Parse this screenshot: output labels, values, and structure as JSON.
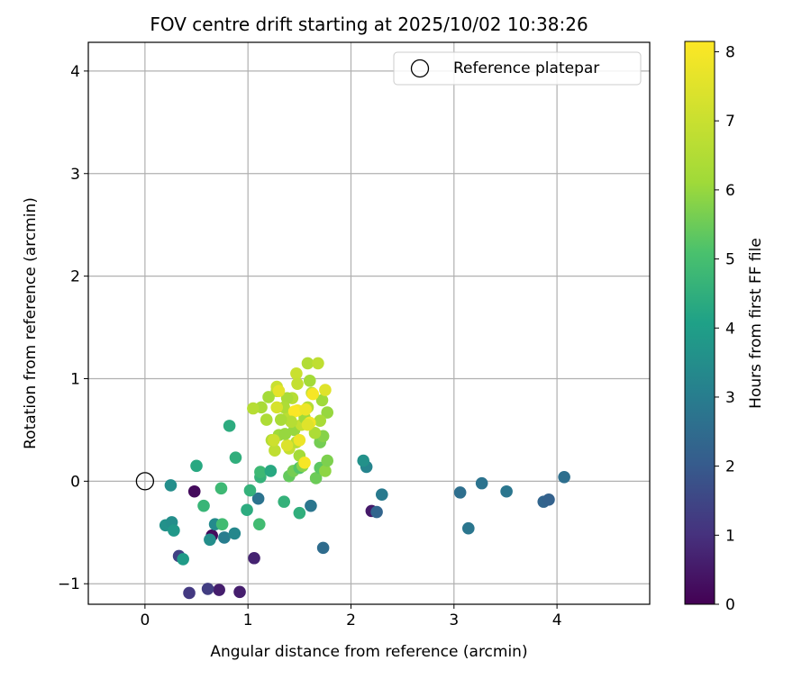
{
  "chart_data": {
    "type": "scatter",
    "title": "FOV centre drift starting at 2025/10/02 10:38:26",
    "xlabel": "Angular distance from reference (arcmin)",
    "ylabel": "Rotation from reference (arcmin)",
    "xlim": [
      -0.55,
      4.9
    ],
    "ylim": [
      -1.2,
      4.28
    ],
    "xticks": [
      0,
      1,
      2,
      3,
      4
    ],
    "yticks": [
      -1,
      0,
      1,
      2,
      3,
      4
    ],
    "grid": true,
    "legend": {
      "label": "Reference platepar",
      "position": "top-right",
      "marker": "open-circle"
    },
    "reference_point": {
      "x": 0,
      "y": 0
    },
    "colorbar": {
      "label": "Hours from first FF file",
      "min": 0,
      "max": 8.15,
      "ticks": [
        0,
        1,
        2,
        3,
        4,
        5,
        6,
        7,
        8
      ],
      "colormap": "viridis"
    },
    "points": [
      {
        "x": 0.48,
        "y": -0.1,
        "h": 0.2
      },
      {
        "x": 0.65,
        "y": -0.53,
        "h": 0.2
      },
      {
        "x": 0.72,
        "y": -1.06,
        "h": 0.6
      },
      {
        "x": 0.92,
        "y": -1.08,
        "h": 0.6
      },
      {
        "x": 1.06,
        "y": -0.75,
        "h": 0.7
      },
      {
        "x": 0.43,
        "y": -1.09,
        "h": 1.2
      },
      {
        "x": 0.61,
        "y": -1.05,
        "h": 1.3
      },
      {
        "x": 0.33,
        "y": -0.73,
        "h": 1.4
      },
      {
        "x": 2.2,
        "y": -0.29,
        "h": 0.5
      },
      {
        "x": 3.87,
        "y": -0.2,
        "h": 2.3
      },
      {
        "x": 3.92,
        "y": -0.18,
        "h": 2.2
      },
      {
        "x": 4.07,
        "y": 0.04,
        "h": 2.6
      },
      {
        "x": 3.51,
        "y": -0.1,
        "h": 2.8
      },
      {
        "x": 3.27,
        "y": -0.02,
        "h": 2.7
      },
      {
        "x": 3.06,
        "y": -0.11,
        "h": 2.6
      },
      {
        "x": 3.14,
        "y": -0.46,
        "h": 2.8
      },
      {
        "x": 2.25,
        "y": -0.3,
        "h": 2.3
      },
      {
        "x": 2.3,
        "y": -0.13,
        "h": 2.9
      },
      {
        "x": 2.15,
        "y": 0.14,
        "h": 3.2
      },
      {
        "x": 2.12,
        "y": 0.2,
        "h": 3.6
      },
      {
        "x": 1.73,
        "y": -0.65,
        "h": 2.5
      },
      {
        "x": 1.61,
        "y": -0.24,
        "h": 2.8
      },
      {
        "x": 1.1,
        "y": -0.17,
        "h": 2.7
      },
      {
        "x": 0.77,
        "y": -0.55,
        "h": 3.0
      },
      {
        "x": 0.87,
        "y": -0.51,
        "h": 3.3
      },
      {
        "x": 0.68,
        "y": -0.42,
        "h": 3.4
      },
      {
        "x": 0.63,
        "y": -0.57,
        "h": 3.5
      },
      {
        "x": 0.2,
        "y": -0.43,
        "h": 3.6
      },
      {
        "x": 0.26,
        "y": -0.4,
        "h": 3.5
      },
      {
        "x": 0.28,
        "y": -0.48,
        "h": 3.8
      },
      {
        "x": 0.37,
        "y": -0.76,
        "h": 3.9
      },
      {
        "x": 0.25,
        "y": -0.04,
        "h": 3.5
      },
      {
        "x": 0.5,
        "y": 0.15,
        "h": 4.3
      },
      {
        "x": 0.57,
        "y": -0.24,
        "h": 4.7
      },
      {
        "x": 0.75,
        "y": -0.42,
        "h": 4.9
      },
      {
        "x": 0.74,
        "y": -0.07,
        "h": 4.8
      },
      {
        "x": 0.82,
        "y": 0.54,
        "h": 4.4
      },
      {
        "x": 0.88,
        "y": 0.23,
        "h": 4.5
      },
      {
        "x": 0.99,
        "y": -0.28,
        "h": 4.4
      },
      {
        "x": 1.02,
        "y": -0.09,
        "h": 4.6
      },
      {
        "x": 1.11,
        "y": -0.42,
        "h": 4.9
      },
      {
        "x": 1.12,
        "y": 0.04,
        "h": 4.6
      },
      {
        "x": 1.12,
        "y": 0.09,
        "h": 4.8
      },
      {
        "x": 1.22,
        "y": 0.1,
        "h": 4.3
      },
      {
        "x": 1.35,
        "y": -0.2,
        "h": 4.6
      },
      {
        "x": 1.5,
        "y": -0.31,
        "h": 4.5
      },
      {
        "x": 1.4,
        "y": 0.05,
        "h": 5.4
      },
      {
        "x": 1.44,
        "y": 0.1,
        "h": 5.6
      },
      {
        "x": 1.5,
        "y": 0.13,
        "h": 5.2
      },
      {
        "x": 1.53,
        "y": 0.15,
        "h": 5.8
      },
      {
        "x": 1.66,
        "y": 0.03,
        "h": 5.5
      },
      {
        "x": 1.7,
        "y": 0.13,
        "h": 5.3
      },
      {
        "x": 1.75,
        "y": 0.1,
        "h": 5.9
      },
      {
        "x": 1.77,
        "y": 0.2,
        "h": 5.7
      },
      {
        "x": 1.7,
        "y": 0.38,
        "h": 5.6
      },
      {
        "x": 1.73,
        "y": 0.44,
        "h": 5.8
      },
      {
        "x": 1.77,
        "y": 0.67,
        "h": 6.0
      },
      {
        "x": 1.72,
        "y": 0.79,
        "h": 6.1
      },
      {
        "x": 1.7,
        "y": 0.59,
        "h": 6.3
      },
      {
        "x": 1.65,
        "y": 0.47,
        "h": 6.4
      },
      {
        "x": 1.6,
        "y": 0.98,
        "h": 6.2
      },
      {
        "x": 1.58,
        "y": 1.15,
        "h": 6.5
      },
      {
        "x": 1.68,
        "y": 1.15,
        "h": 6.8
      },
      {
        "x": 1.47,
        "y": 1.05,
        "h": 7.0
      },
      {
        "x": 1.48,
        "y": 0.95,
        "h": 6.9
      },
      {
        "x": 1.43,
        "y": 0.81,
        "h": 6.6
      },
      {
        "x": 1.38,
        "y": 0.81,
        "h": 6.3
      },
      {
        "x": 1.4,
        "y": 0.65,
        "h": 6.7
      },
      {
        "x": 1.35,
        "y": 0.72,
        "h": 6.4
      },
      {
        "x": 1.28,
        "y": 0.88,
        "h": 6.5
      },
      {
        "x": 1.2,
        "y": 0.82,
        "h": 6.2
      },
      {
        "x": 1.18,
        "y": 0.6,
        "h": 6.4
      },
      {
        "x": 1.13,
        "y": 0.72,
        "h": 6.3
      },
      {
        "x": 1.05,
        "y": 0.71,
        "h": 6.6
      },
      {
        "x": 1.23,
        "y": 0.4,
        "h": 6.5
      },
      {
        "x": 1.26,
        "y": 0.3,
        "h": 6.8
      },
      {
        "x": 1.3,
        "y": 0.45,
        "h": 6.1
      },
      {
        "x": 1.4,
        "y": 0.32,
        "h": 6.9
      },
      {
        "x": 1.45,
        "y": 0.5,
        "h": 6.0
      },
      {
        "x": 1.47,
        "y": 0.38,
        "h": 6.6
      },
      {
        "x": 1.5,
        "y": 0.25,
        "h": 6.2
      },
      {
        "x": 1.52,
        "y": 0.55,
        "h": 6.9
      },
      {
        "x": 1.55,
        "y": 0.62,
        "h": 6.1
      },
      {
        "x": 1.58,
        "y": 0.72,
        "h": 6.5
      },
      {
        "x": 1.62,
        "y": 0.86,
        "h": 6.7
      },
      {
        "x": 1.28,
        "y": 0.92,
        "h": 7.0
      },
      {
        "x": 1.28,
        "y": 0.72,
        "h": 7.3
      },
      {
        "x": 1.3,
        "y": 0.88,
        "h": 7.6
      },
      {
        "x": 1.25,
        "y": 0.4,
        "h": 7.1
      },
      {
        "x": 1.38,
        "y": 0.35,
        "h": 7.4
      },
      {
        "x": 1.48,
        "y": 0.69,
        "h": 7.9
      },
      {
        "x": 1.45,
        "y": 0.68,
        "h": 8.1
      },
      {
        "x": 1.56,
        "y": 0.7,
        "h": 7.8
      },
      {
        "x": 1.6,
        "y": 0.57,
        "h": 7.9
      },
      {
        "x": 1.58,
        "y": 0.55,
        "h": 7.5
      },
      {
        "x": 1.63,
        "y": 0.85,
        "h": 8.0
      },
      {
        "x": 1.75,
        "y": 0.89,
        "h": 7.5
      },
      {
        "x": 1.5,
        "y": 0.4,
        "h": 7.8
      },
      {
        "x": 1.55,
        "y": 0.18,
        "h": 8.0
      },
      {
        "x": 1.42,
        "y": 0.58,
        "h": 6.6
      },
      {
        "x": 1.32,
        "y": 0.6,
        "h": 6.3
      },
      {
        "x": 1.36,
        "y": 0.46,
        "h": 6.0
      }
    ]
  }
}
